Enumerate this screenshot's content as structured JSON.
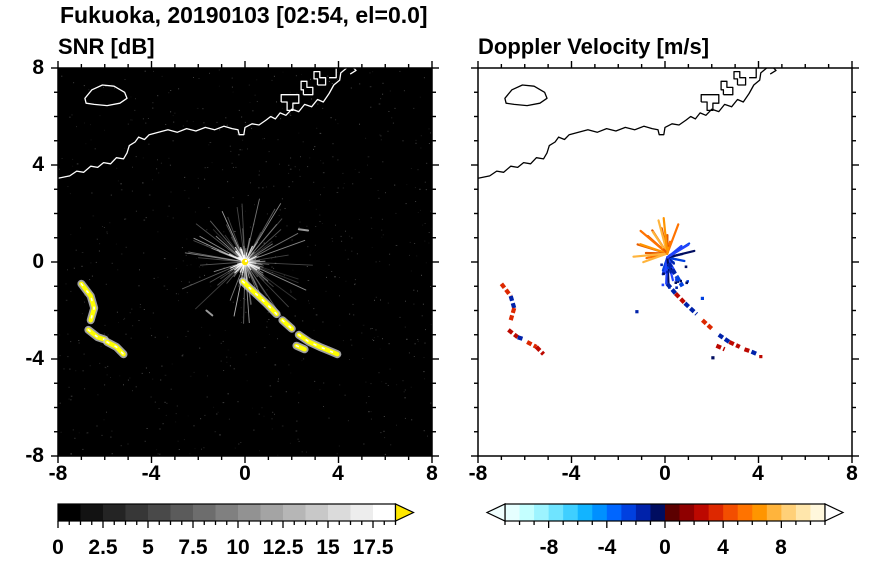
{
  "header": {
    "title": "Fukuoka, 20190103 [02:54, el=0.0]"
  },
  "panels": [
    {
      "id": "snr",
      "title": "SNR [dB]",
      "background": "#000000",
      "coast_color": "#ffffff"
    },
    {
      "id": "doppler",
      "title": "Doppler Velocity [m/s]",
      "background": "#ffffff",
      "coast_color": "#000000"
    }
  ],
  "axes": {
    "xmin": -8,
    "xmax": 8,
    "ymin": -8,
    "ymax": 8,
    "major_tick": 4,
    "minor_tick": 1,
    "xtick_labels": [
      "-8",
      "-4",
      "0",
      "4",
      "8"
    ],
    "ytick_labels": [
      "8",
      "4",
      "0",
      "-4",
      "-8"
    ]
  },
  "colorbars": [
    {
      "id": "snr",
      "min": 0,
      "max": 18.75,
      "major": 2.5,
      "minor": 0.625,
      "steps": 15,
      "tick_labels": [
        "0",
        "2.5",
        "5",
        "7.5",
        "10",
        "12.5",
        "15",
        "17.5"
      ],
      "colormap": "grayscale",
      "over_arrow_color": "#ffe800"
    },
    {
      "id": "doppler",
      "min": -11,
      "max": 11,
      "major": 4,
      "minor": 1,
      "tick_labels": [
        "-8",
        "-4",
        "0",
        "4",
        "8"
      ],
      "blocks": [
        "#e6ffff",
        "#c4ffff",
        "#9df4ff",
        "#6fe4ff",
        "#3fcfff",
        "#12b4ff",
        "#0090ff",
        "#0066ff",
        "#0040e0",
        "#0022aa",
        "#000d60",
        "#5c0000",
        "#8f0000",
        "#bc0800",
        "#dd2800",
        "#f34e00",
        "#ff7300",
        "#ff9500",
        "#ffb43c",
        "#ffd078",
        "#ffe6ab",
        "#fff7dc"
      ],
      "under_arrow_color": "#f0ffff",
      "over_arrow_color": "#ffffff"
    }
  ],
  "coastline": {
    "mainland": [
      [
        -8,
        3.45
      ],
      [
        -7.5,
        3.55
      ],
      [
        -7.2,
        3.75
      ],
      [
        -6.9,
        3.7
      ],
      [
        -6.6,
        3.95
      ],
      [
        -6.3,
        3.9
      ],
      [
        -6.05,
        4.1
      ],
      [
        -5.75,
        4.05
      ],
      [
        -5.5,
        4.3
      ],
      [
        -5.2,
        4.25
      ],
      [
        -5.05,
        4.5
      ],
      [
        -4.95,
        4.8
      ],
      [
        -4.7,
        4.95
      ],
      [
        -4.55,
        5.15
      ],
      [
        -4.3,
        5.05
      ],
      [
        -4.1,
        5.25
      ],
      [
        -3.7,
        5.35
      ],
      [
        -3.3,
        5.45
      ],
      [
        -2.9,
        5.35
      ],
      [
        -2.5,
        5.5
      ],
      [
        -2.1,
        5.4
      ],
      [
        -1.7,
        5.55
      ],
      [
        -1.3,
        5.45
      ],
      [
        -0.9,
        5.6
      ],
      [
        -0.55,
        5.5
      ],
      [
        -0.3,
        5.45
      ],
      [
        -0.25,
        5.25
      ],
      [
        -0.05,
        5.25
      ],
      [
        0,
        5.55
      ],
      [
        0.3,
        5.7
      ],
      [
        0.6,
        5.65
      ],
      [
        0.9,
        5.85
      ],
      [
        1.1,
        6.0
      ],
      [
        1.3,
        5.9
      ],
      [
        1.5,
        6.15
      ],
      [
        1.75,
        6.05
      ],
      [
        2.0,
        6.3
      ],
      [
        2.3,
        6.2
      ],
      [
        2.55,
        6.5
      ],
      [
        2.85,
        6.4
      ],
      [
        3.1,
        6.7
      ],
      [
        3.35,
        6.6
      ],
      [
        3.6,
        6.95
      ],
      [
        3.8,
        7.3
      ],
      [
        4.05,
        7.5
      ],
      [
        4.1,
        7.8
      ],
      [
        4.35,
        8.0
      ]
    ],
    "island": [
      [
        -6.85,
        6.75
      ],
      [
        -6.55,
        7.1
      ],
      [
        -6.1,
        7.3
      ],
      [
        -5.6,
        7.25
      ],
      [
        -5.15,
        7.0
      ],
      [
        -5.05,
        6.75
      ],
      [
        -5.35,
        6.55
      ],
      [
        -5.9,
        6.45
      ],
      [
        -6.45,
        6.5
      ],
      [
        -6.8,
        6.55
      ]
    ],
    "structures": [
      [
        [
          1.55,
          6.6
        ],
        [
          1.8,
          6.6
        ],
        [
          1.8,
          6.25
        ],
        [
          2.05,
          6.25
        ],
        [
          2.05,
          6.55
        ],
        [
          2.3,
          6.55
        ],
        [
          2.3,
          6.9
        ],
        [
          1.55,
          6.9
        ],
        [
          1.55,
          6.6
        ]
      ],
      [
        [
          2.5,
          6.9
        ],
        [
          2.9,
          6.9
        ],
        [
          2.9,
          7.2
        ],
        [
          2.65,
          7.2
        ],
        [
          2.65,
          7.45
        ],
        [
          2.4,
          7.45
        ],
        [
          2.4,
          7.1
        ],
        [
          2.5,
          7.1
        ],
        [
          2.5,
          6.9
        ]
      ],
      [
        [
          3.1,
          7.3
        ],
        [
          3.45,
          7.3
        ],
        [
          3.45,
          7.6
        ],
        [
          3.2,
          7.6
        ],
        [
          3.2,
          7.85
        ],
        [
          2.95,
          7.85
        ],
        [
          2.95,
          7.55
        ],
        [
          3.1,
          7.55
        ],
        [
          3.1,
          7.3
        ]
      ],
      [
        [
          3.6,
          7.6
        ],
        [
          3.9,
          7.6
        ],
        [
          3.9,
          8.0
        ]
      ],
      [
        [
          4.5,
          7.75
        ],
        [
          4.75,
          7.9
        ],
        [
          4.65,
          8.0
        ]
      ]
    ]
  },
  "chart_data": [
    {
      "type": "heatmap",
      "title": "SNR [dB]",
      "xlabel": "",
      "ylabel": "",
      "xlim": [
        -8,
        8
      ],
      "ylim": [
        -8,
        8
      ],
      "colorbar": {
        "label": "SNR [dB]",
        "range": [
          0,
          18.75
        ],
        "ticks": [
          0,
          2.5,
          5,
          7.5,
          10,
          12.5,
          15,
          17.5
        ],
        "colormap": "grayscale",
        "over_color": "#ffe800"
      },
      "radar_site": [
        0,
        0
      ],
      "clutter_burst": {
        "center": [
          0,
          0
        ],
        "max_radius_km": 2.6
      },
      "echoes": [
        {
          "points": [
            [
              -7.0,
              -0.9
            ],
            [
              -6.6,
              -1.4
            ],
            [
              -6.45,
              -1.9
            ],
            [
              -6.6,
              -2.4
            ]
          ]
        },
        {
          "points": [
            [
              -6.7,
              -2.8
            ],
            [
              -6.3,
              -3.1
            ],
            [
              -6.0,
              -3.2
            ]
          ]
        },
        {
          "points": [
            [
              -5.9,
              -3.3
            ],
            [
              -5.5,
              -3.5
            ],
            [
              -5.2,
              -3.8
            ]
          ]
        },
        {
          "points": [
            [
              -0.1,
              -0.8
            ],
            [
              0.4,
              -1.25
            ],
            [
              0.9,
              -1.7
            ],
            [
              1.35,
              -2.15
            ]
          ]
        },
        {
          "points": [
            [
              1.6,
              -2.4
            ],
            [
              2.0,
              -2.75
            ]
          ]
        },
        {
          "points": [
            [
              2.3,
              -3.0
            ],
            [
              2.75,
              -3.3
            ],
            [
              3.2,
              -3.5
            ],
            [
              3.7,
              -3.7
            ],
            [
              3.95,
              -3.8
            ]
          ]
        },
        {
          "points": [
            [
              2.2,
              -3.45
            ],
            [
              2.55,
              -3.6
            ]
          ]
        },
        {
          "points": [
            [
              -1.65,
              -2.0
            ],
            [
              -1.4,
              -2.2
            ]
          ],
          "weak": true
        },
        {
          "points": [
            [
              2.3,
              1.35
            ],
            [
              2.7,
              1.3
            ]
          ],
          "weak": true
        }
      ]
    },
    {
      "type": "heatmap",
      "title": "Doppler Velocity [m/s]",
      "xlabel": "",
      "ylabel": "",
      "xlim": [
        -8,
        8
      ],
      "ylim": [
        -8,
        8
      ],
      "colorbar": {
        "label": "Doppler Velocity [m/s]",
        "range": [
          -11,
          11
        ],
        "ticks": [
          -8,
          -4,
          0,
          4,
          8
        ],
        "colormap": "blue-red"
      },
      "velocity_burst": {
        "center": [
          0.1,
          0.35
        ],
        "away_from_radar": {
          "palette": [
            "#ff7300",
            "#ff9500",
            "#e65c00",
            "#ffb43c"
          ],
          "angle_range_deg": [
            55,
            200
          ],
          "max_len_km": 1.35
        },
        "toward_radar": {
          "palette": [
            "#0040e0",
            "#0022aa",
            "#2244ff",
            "#000d60"
          ],
          "angle_range_deg": [
            -110,
            45
          ],
          "max_len_km": 1.05
        }
      },
      "echoes": [
        {
          "points": [
            [
              0.15,
              -0.05
            ],
            [
              0.5,
              -0.6
            ],
            [
              0.75,
              -1.0
            ]
          ],
          "colors": [
            "#0022aa",
            "#0040e0"
          ]
        },
        {
          "points": [
            [
              -7.0,
              -0.9
            ],
            [
              -6.6,
              -1.4
            ],
            [
              -6.45,
              -1.9
            ],
            [
              -6.6,
              -2.4
            ]
          ],
          "colors": [
            "#dd2800",
            "#0022aa",
            "#dd2800"
          ]
        },
        {
          "points": [
            [
              -6.7,
              -2.8
            ],
            [
              -6.3,
              -3.1
            ],
            [
              -6.0,
              -3.2
            ]
          ],
          "colors": [
            "#bc0800",
            "#0022aa"
          ]
        },
        {
          "points": [
            [
              -5.9,
              -3.3
            ],
            [
              -5.5,
              -3.5
            ],
            [
              -5.2,
              -3.8
            ]
          ],
          "colors": [
            "#dd2800",
            "#bc0800"
          ]
        },
        {
          "points": [
            [
              0.1,
              -0.9
            ],
            [
              0.45,
              -1.3
            ],
            [
              0.85,
              -1.7
            ],
            [
              1.35,
              -2.15
            ]
          ],
          "colors": [
            "#0022aa",
            "#bc0800",
            "#0022aa"
          ]
        },
        {
          "points": [
            [
              1.6,
              -2.4
            ],
            [
              2.0,
              -2.75
            ]
          ],
          "colors": [
            "#dd2800"
          ]
        },
        {
          "points": [
            [
              2.3,
              -3.0
            ],
            [
              2.75,
              -3.3
            ],
            [
              3.2,
              -3.5
            ]
          ],
          "colors": [
            "#0022aa",
            "#bc0800"
          ]
        },
        {
          "points": [
            [
              3.4,
              -3.6
            ],
            [
              3.7,
              -3.7
            ],
            [
              3.95,
              -3.8
            ]
          ],
          "colors": [
            "#bc0800",
            "#0022aa"
          ]
        },
        {
          "points": [
            [
              2.2,
              -3.45
            ],
            [
              2.55,
              -3.6
            ]
          ],
          "colors": [
            "#bc0800"
          ]
        }
      ],
      "specks": [
        [
          -1.2,
          -2.05,
          "#0022aa"
        ],
        [
          1.6,
          -1.5,
          "#0040e0"
        ],
        [
          2.05,
          -3.95,
          "#000d60"
        ],
        [
          4.1,
          -3.9,
          "#bc0800"
        ]
      ]
    }
  ]
}
